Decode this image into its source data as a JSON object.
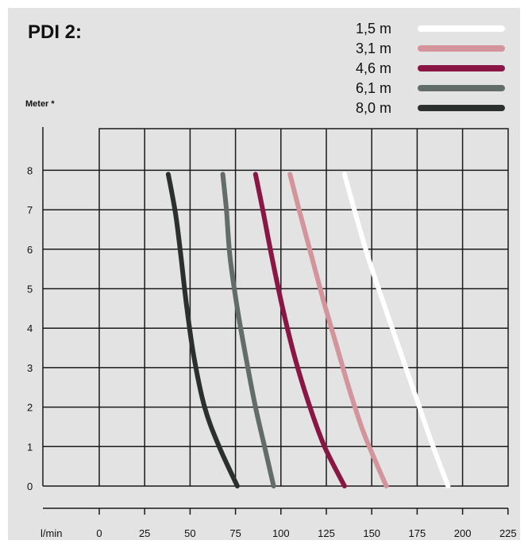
{
  "chart_data": {
    "type": "line",
    "title": "PDI 2:",
    "ylabel": "Meter *",
    "xlabel": "l/min",
    "xlim": [
      0,
      225
    ],
    "ylim": [
      0,
      9
    ],
    "x_ticks": [
      0,
      25,
      50,
      75,
      100,
      125,
      150,
      175,
      200,
      225
    ],
    "y_ticks": [
      0,
      1,
      2,
      3,
      4,
      5,
      6,
      7,
      8
    ],
    "grid": true,
    "legend_position": "top-right",
    "series": [
      {
        "name": "1,5 m",
        "color": "#ffffff",
        "points": [
          [
            135,
            7.9
          ],
          [
            141,
            6.9
          ],
          [
            148,
            5.8
          ],
          [
            156,
            4.7
          ],
          [
            165,
            3.5
          ],
          [
            174,
            2.3
          ],
          [
            183,
            1.1
          ],
          [
            192,
            0
          ]
        ]
      },
      {
        "name": "3,1 m",
        "color": "#d4949c",
        "points": [
          [
            105,
            7.9
          ],
          [
            110,
            7.0
          ],
          [
            117,
            5.8
          ],
          [
            124,
            4.6
          ],
          [
            131,
            3.5
          ],
          [
            138,
            2.4
          ],
          [
            146,
            1.3
          ],
          [
            158,
            0
          ]
        ]
      },
      {
        "name": "4,6 m",
        "color": "#8a1645",
        "points": [
          [
            86,
            7.9
          ],
          [
            90,
            7.0
          ],
          [
            95,
            5.8
          ],
          [
            101,
            4.5
          ],
          [
            108,
            3.2
          ],
          [
            116,
            2.0
          ],
          [
            124,
            1.0
          ],
          [
            135,
            0
          ]
        ]
      },
      {
        "name": "6,1 m",
        "color": "#626c69",
        "points": [
          [
            68,
            7.9
          ],
          [
            70,
            7.0
          ],
          [
            72,
            5.8
          ],
          [
            76,
            4.5
          ],
          [
            81,
            3.2
          ],
          [
            86,
            2.0
          ],
          [
            91,
            1.0
          ],
          [
            96,
            0
          ]
        ]
      },
      {
        "name": "8,0 m",
        "color": "#2b302f",
        "points": [
          [
            38,
            7.9
          ],
          [
            42,
            6.9
          ],
          [
            45,
            5.8
          ],
          [
            48,
            4.6
          ],
          [
            52,
            3.3
          ],
          [
            58,
            2.0
          ],
          [
            66,
            1.0
          ],
          [
            76,
            0
          ]
        ]
      }
    ]
  }
}
